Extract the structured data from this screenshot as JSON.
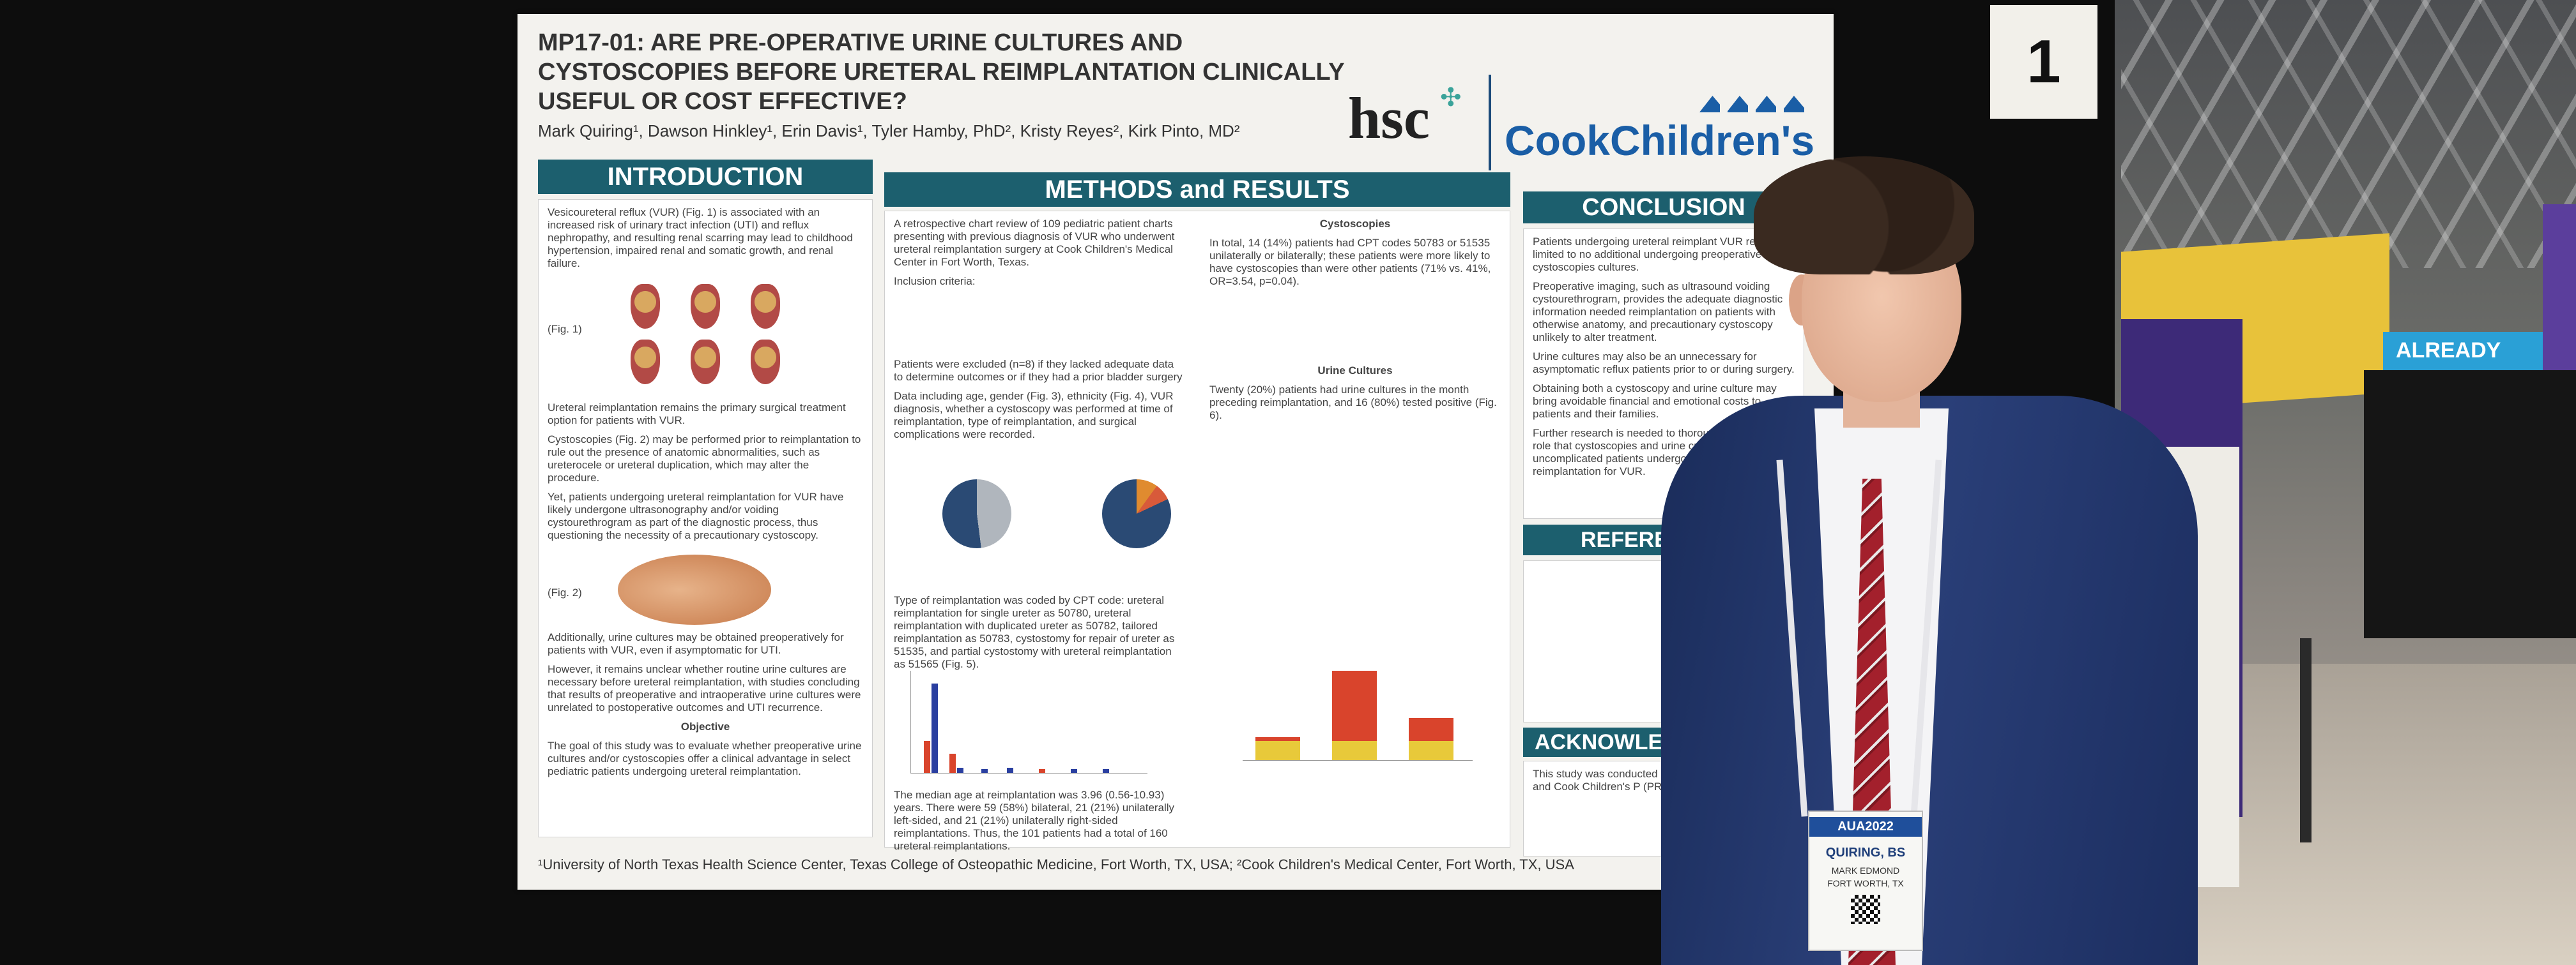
{
  "booth": {
    "number": "1"
  },
  "venue": {
    "sign_text": "ALREADY"
  },
  "poster": {
    "title": "MP17-01: ARE PRE-OPERATIVE URINE CULTURES AND CYSTOSCOPIES BEFORE URETERAL REIMPLANTATION CLINICALLY USEFUL OR COST EFFECTIVE?",
    "authors": "Mark Quiring¹, Dawson Hinkley¹, Erin Davis¹, Tyler Hamby, PhD², Kristy Reyes², Kirk Pinto, MD²",
    "logo_hsc": "hsc",
    "logo_cook": "CookChildren's",
    "sections": {
      "introduction": "INTRODUCTION",
      "methods": "METHODS and RESULTS",
      "conclusion": "CONCLUSION",
      "references": "REFERE",
      "acknowledgements": "ACKNOWLE"
    },
    "intro_text": [
      "Vesicoureteral reflux (VUR) (Fig. 1) is associated with an increased risk of urinary tract infection (UTI) and reflux nephropathy, and resulting renal scarring may lead to childhood hypertension, impaired renal and somatic growth, and renal failure.",
      "Ureteral reimplantation remains the primary surgical treatment option for patients with VUR.",
      "Cystoscopies (Fig. 2) may be performed prior to reimplantation to rule out the presence of anatomic abnormalities, such as ureterocele or ureteral duplication, which may alter the procedure.",
      "Yet, patients undergoing ureteral reimplantation for VUR have likely undergone ultrasonography and/or voiding cystourethrogram as part of the diagnostic process, thus questioning the necessity of a precautionary cystoscopy.",
      "Additionally, urine cultures may be obtained preoperatively for patients with VUR, even if asymptomatic for UTI.",
      "However, it remains unclear whether routine urine cultures are necessary before ureteral reimplantation, with studies concluding that results of preoperative and intraoperative urine cultures were unrelated to postoperative outcomes and UTI recurrence."
    ],
    "objective_heading": "Objective",
    "objective_text": "The goal of this study was to evaluate whether preoperative urine cultures and/or cystoscopies offer a clinical advantage in select pediatric patients undergoing ureteral reimplantation.",
    "fig1": "(Fig. 1)",
    "fig2": "(Fig. 2)",
    "methods_text": [
      "A retrospective chart review of 109 pediatric patient charts presenting with previous diagnosis of VUR who underwent ureteral reimplantation surgery at Cook Children's Medical Center in Fort Worth, Texas.",
      "Inclusion criteria:",
      "Patients were excluded (n=8) if they lacked adequate data to determine outcomes or if they had a prior bladder surgery",
      "Data including age, gender (Fig. 3), ethnicity (Fig. 4), VUR diagnosis, whether a cystoscopy was performed at time of reimplantation, type of reimplantation, and surgical complications were recorded.",
      "Type of reimplantation was coded by CPT code: ureteral reimplantation for single ureter as 50780, ureteral reimplantation with duplicated ureter as 50782, tailored reimplantation as 50783, cystostomy for repair of ureter as 51535, and partial cystostomy with ureteral reimplantation as 51565 (Fig. 5).",
      "The median age at reimplantation was 3.96 (0.56-10.93) years. There were 59 (58%) bilateral, 21 (21%) unilaterally left-sided, and 21 (21%) unilaterally right-sided reimplantations. Thus, the 101 patients had a total of 160 ureteral reimplantations."
    ],
    "cystoscopies_heading": "Cystoscopies",
    "cystoscopies_text": "In total, 14 (14%) patients had CPT codes 50783 or 51535 unilaterally or bilaterally; these patients were more likely to have cystoscopies than were other patients (71% vs. 41%, OR=3.54, p=0.04).",
    "urine_heading": "Urine Cultures",
    "urine_text": "Twenty (20%) patients had urine cultures in the month preceding reimplantation, and 16 (80%) tested positive (Fig. 6).",
    "conclusion_text": [
      "Patients undergoing ureteral reimplant VUR received limited to no additional undergoing preoperative cystoscopies cultures.",
      "Preoperative imaging, such as ultrasound voiding cystourethrogram, provides the adequate diagnostic information needed reimplantation on patients with otherwise anatomy, and precautionary cystoscopy unlikely to alter treatment.",
      "Urine cultures may also be an unnecessary for asymptomatic reflux patients prior to or during surgery.",
      "Obtaining both a cystoscopy and urine culture may bring avoidable financial and emotional costs to patients and their families.",
      "Further research is needed to thoroughly identify the role that cystoscopies and urine cultures serve for uncomplicated patients undergoing simple ureteral reimplantation for VUR."
    ],
    "ack_text": "This study was conducted at University of North Texas and Cook Children's P (PRP).",
    "footer": "¹University of North Texas Health Science Center, Texas College of Osteopathic Medicine, Fort Worth, TX, USA; ²Cook Children's Medical Center, Fort Worth, TX, USA"
  },
  "badge": {
    "event": "AUA2022",
    "name": "QUIRING, BS",
    "first": "MARK EDMOND",
    "city": "FORT WORTH, TX"
  },
  "colors": {
    "section_header": "#1c5f6e",
    "cook_blue": "#1a5ea6",
    "jacket": "#1f3366",
    "tie": "#a3202c"
  }
}
